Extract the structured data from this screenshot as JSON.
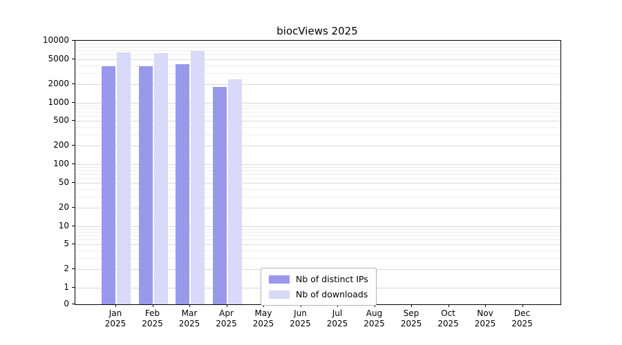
{
  "chart_data": {
    "type": "bar",
    "title": "biocViews 2025",
    "categories": [
      "Jan",
      "Feb",
      "Mar",
      "Apr",
      "May",
      "Jun",
      "Jul",
      "Aug",
      "Sep",
      "Oct",
      "Nov",
      "Dec"
    ],
    "year_label": "2025",
    "series": [
      {
        "name": "Nb of distinct IPs",
        "color": "#9999ec",
        "values": [
          3900,
          3900,
          4200,
          1800,
          null,
          null,
          null,
          null,
          null,
          null,
          null,
          null
        ]
      },
      {
        "name": "Nb of downloads",
        "color": "#d9d9f9",
        "values": [
          6400,
          6300,
          6800,
          2400,
          null,
          null,
          null,
          null,
          null,
          null,
          null,
          null
        ]
      }
    ],
    "y_ticks": [
      0,
      1,
      2,
      5,
      10,
      20,
      50,
      100,
      200,
      500,
      1000,
      2000,
      5000,
      10000
    ],
    "y_scale": "log",
    "ylim": [
      0,
      10000
    ],
    "grid": true,
    "legend_position": "lower center"
  }
}
